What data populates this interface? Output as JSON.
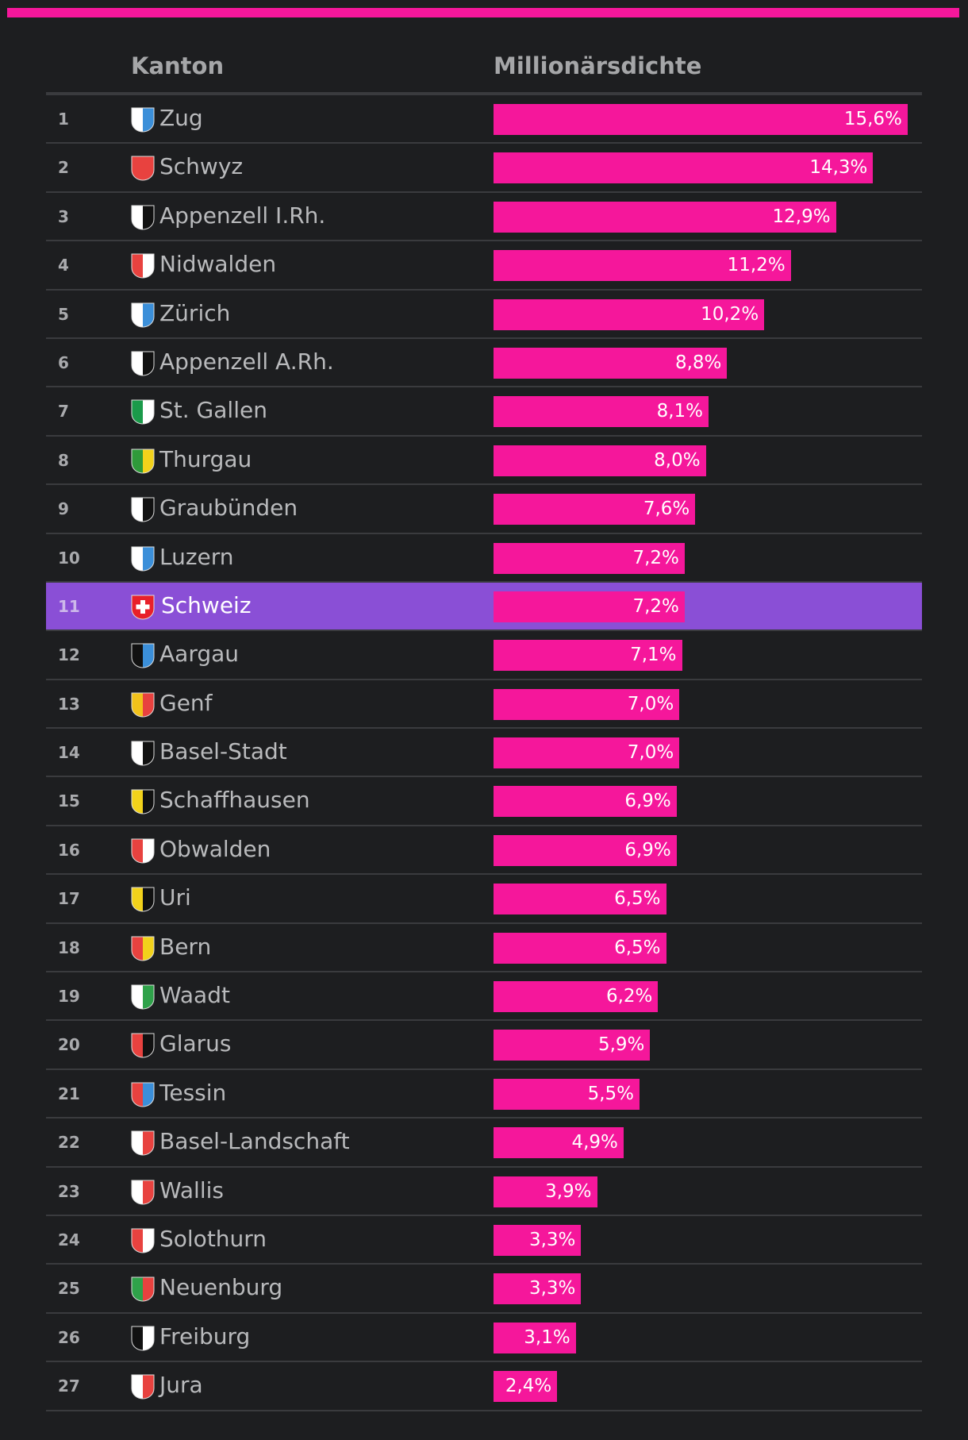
{
  "colors": {
    "background": "#1d1e20",
    "accent": "#f5179b",
    "highlight": "#8a4fd6",
    "grid": "#3a3b3e"
  },
  "header": {
    "kanton": "Kanton",
    "value": "Millionärsdichte"
  },
  "chart_data": {
    "type": "bar",
    "orientation": "horizontal",
    "title": "",
    "xlabel": "Millionärsdichte",
    "ylabel": "Kanton",
    "xlim": [
      0,
      16.5
    ],
    "grid": false,
    "highlight_category": "Schweiz",
    "categories": [
      "Zug",
      "Schwyz",
      "Appenzell I.Rh.",
      "Nidwalden",
      "Zürich",
      "Appenzell A.Rh.",
      "St. Gallen",
      "Thurgau",
      "Graubünden",
      "Luzern",
      "Schweiz",
      "Aargau",
      "Genf",
      "Basel-Stadt",
      "Schaffhausen",
      "Obwalden",
      "Uri",
      "Bern",
      "Waadt",
      "Glarus",
      "Tessin",
      "Basel-Landschaft",
      "Wallis",
      "Solothurn",
      "Neuenburg",
      "Freiburg",
      "Jura"
    ],
    "values": [
      15.6,
      14.3,
      12.9,
      11.2,
      10.2,
      8.8,
      8.1,
      8.0,
      7.6,
      7.2,
      7.2,
      7.1,
      7.0,
      7.0,
      6.9,
      6.9,
      6.5,
      6.5,
      6.2,
      5.9,
      5.5,
      4.9,
      3.9,
      3.3,
      3.3,
      3.1,
      2.4
    ],
    "ranks": [
      "1",
      "2",
      "3",
      "4",
      "5",
      "6",
      "7",
      "8",
      "9",
      "10",
      "11",
      "12",
      "13",
      "14",
      "15",
      "16",
      "17",
      "18",
      "19",
      "20",
      "21",
      "22",
      "23",
      "24",
      "25",
      "26",
      "27"
    ],
    "labels": [
      "15,6%",
      "14,3%",
      "12,9%",
      "11,2%",
      "10,2%",
      "8,8%",
      "8,1%",
      "8,0%",
      "7,6%",
      "7,2%",
      "7,2%",
      "7,1%",
      "7,0%",
      "7,0%",
      "6,9%",
      "6,9%",
      "6,5%",
      "6,5%",
      "6,2%",
      "5,9%",
      "5,5%",
      "4,9%",
      "3,9%",
      "3,3%",
      "3,3%",
      "3,1%",
      "2,4%"
    ],
    "flag_icons": [
      "zug-flag-icon",
      "schwyz-flag-icon",
      "appenzell-ir-flag-icon",
      "nidwalden-flag-icon",
      "zuerich-flag-icon",
      "appenzell-ar-flag-icon",
      "st-gallen-flag-icon",
      "thurgau-flag-icon",
      "graubuenden-flag-icon",
      "luzern-flag-icon",
      "schweiz-flag-icon",
      "aargau-flag-icon",
      "genf-flag-icon",
      "basel-stadt-flag-icon",
      "schaffhausen-flag-icon",
      "obwalden-flag-icon",
      "uri-flag-icon",
      "bern-flag-icon",
      "waadt-flag-icon",
      "glarus-flag-icon",
      "tessin-flag-icon",
      "basel-landschaft-flag-icon",
      "wallis-flag-icon",
      "solothurn-flag-icon",
      "neuenburg-flag-icon",
      "freiburg-flag-icon",
      "jura-flag-icon"
    ],
    "flag_colors": [
      [
        "#ffffff",
        "#3b8fd9"
      ],
      [
        "#e8423f",
        "#e8423f"
      ],
      [
        "#ffffff",
        "#111111"
      ],
      [
        "#e8423f",
        "#ffffff"
      ],
      [
        "#ffffff",
        "#3b8fd9"
      ],
      [
        "#ffffff",
        "#111111"
      ],
      [
        "#1a9a4a",
        "#ffffff"
      ],
      [
        "#2f9a3a",
        "#f2d21b"
      ],
      [
        "#ffffff",
        "#111111"
      ],
      [
        "#ffffff",
        "#3b8fd9"
      ],
      [
        "#e8202a",
        "#ffffff"
      ],
      [
        "#111111",
        "#3b8fd9"
      ],
      [
        "#f2c21b",
        "#e8423f"
      ],
      [
        "#ffffff",
        "#111111"
      ],
      [
        "#f2d21b",
        "#111111"
      ],
      [
        "#e8423f",
        "#ffffff"
      ],
      [
        "#f2d21b",
        "#111111"
      ],
      [
        "#e8423f",
        "#f2d21b"
      ],
      [
        "#ffffff",
        "#2fa24a"
      ],
      [
        "#e8423f",
        "#111111"
      ],
      [
        "#e8423f",
        "#3b8fd9"
      ],
      [
        "#ffffff",
        "#e8423f"
      ],
      [
        "#ffffff",
        "#e8423f"
      ],
      [
        "#e8423f",
        "#ffffff"
      ],
      [
        "#2fa24a",
        "#e8423f"
      ],
      [
        "#111111",
        "#ffffff"
      ],
      [
        "#ffffff",
        "#e8423f"
      ]
    ]
  }
}
